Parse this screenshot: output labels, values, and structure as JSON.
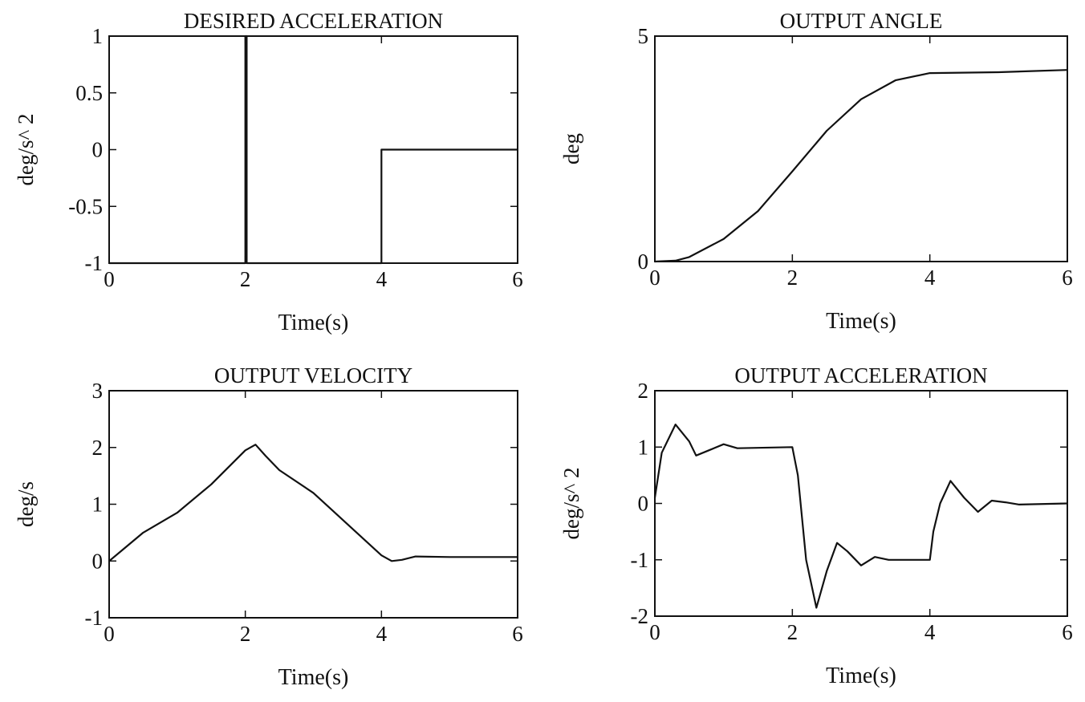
{
  "chart_data": [
    {
      "type": "line",
      "title": "DESIRED ACCELERATION",
      "xlabel": "Time(s)",
      "ylabel": "deg/s^ 2",
      "xlim": [
        0,
        6
      ],
      "ylim": [
        -1,
        1
      ],
      "xticks": [
        "0",
        "2",
        "4",
        "6"
      ],
      "yticks": [
        "-1",
        "-0.5",
        "0",
        "0.5",
        "1"
      ],
      "grid": false,
      "series": [
        {
          "x": [
            0,
            2,
            2,
            2.02,
            2.02,
            4,
            4,
            6
          ],
          "y": [
            -1,
            -1,
            1,
            1,
            -1,
            -1,
            0,
            0
          ]
        }
      ]
    },
    {
      "type": "line",
      "title": "OUTPUT ANGLE",
      "xlabel": "Time(s)",
      "ylabel": "deg",
      "xlim": [
        0,
        6
      ],
      "ylim": [
        0,
        5
      ],
      "xticks": [
        "0",
        "2",
        "4",
        "6"
      ],
      "yticks": [
        "0",
        "5"
      ],
      "grid": false,
      "series": [
        {
          "x": [
            0,
            0.3,
            0.5,
            1.0,
            1.5,
            2.0,
            2.5,
            3.0,
            3.5,
            4.0,
            5.0,
            6.0
          ],
          "y": [
            0,
            0.02,
            0.1,
            0.5,
            1.12,
            2.0,
            2.9,
            3.6,
            4.02,
            4.18,
            4.2,
            4.25
          ]
        }
      ]
    },
    {
      "type": "line",
      "title": "OUTPUT VELOCITY",
      "xlabel": "Time(s)",
      "ylabel": "deg/s",
      "xlim": [
        0,
        6
      ],
      "ylim": [
        -1,
        3
      ],
      "xticks": [
        "0",
        "2",
        "4",
        "6"
      ],
      "yticks": [
        "-1",
        "0",
        "1",
        "2",
        "3"
      ],
      "grid": false,
      "series": [
        {
          "x": [
            0,
            0.2,
            0.5,
            1.0,
            1.5,
            2.0,
            2.15,
            2.3,
            2.5,
            3.0,
            3.5,
            4.0,
            4.15,
            4.3,
            4.5,
            5.0,
            6.0
          ],
          "y": [
            0,
            0.2,
            0.5,
            0.85,
            1.35,
            1.95,
            2.05,
            1.85,
            1.6,
            1.2,
            0.65,
            0.1,
            0.0,
            0.02,
            0.08,
            0.07,
            0.07
          ]
        }
      ]
    },
    {
      "type": "line",
      "title": "OUTPUT ACCELERATION",
      "xlabel": "Time(s)",
      "ylabel": "deg/s^ 2",
      "xlim": [
        0,
        6
      ],
      "ylim": [
        -2,
        2
      ],
      "xticks": [
        "0",
        "2",
        "4",
        "6"
      ],
      "yticks": [
        "-2",
        "-1",
        "0",
        "1",
        "2"
      ],
      "grid": false,
      "series": [
        {
          "x": [
            0,
            0.1,
            0.3,
            0.5,
            0.6,
            0.8,
            1.0,
            1.2,
            2.0,
            2.08,
            2.2,
            2.35,
            2.5,
            2.65,
            2.8,
            3.0,
            3.2,
            3.4,
            4.0,
            4.05,
            4.15,
            4.3,
            4.5,
            4.7,
            4.9,
            5.1,
            5.3,
            6.0
          ],
          "y": [
            0.1,
            0.9,
            1.4,
            1.1,
            0.85,
            0.95,
            1.05,
            0.98,
            1.0,
            0.5,
            -1.0,
            -1.85,
            -1.2,
            -0.7,
            -0.85,
            -1.1,
            -0.95,
            -1.0,
            -1.0,
            -0.5,
            0.0,
            0.4,
            0.1,
            -0.15,
            0.05,
            0.02,
            -0.02,
            0.0
          ]
        }
      ]
    }
  ]
}
